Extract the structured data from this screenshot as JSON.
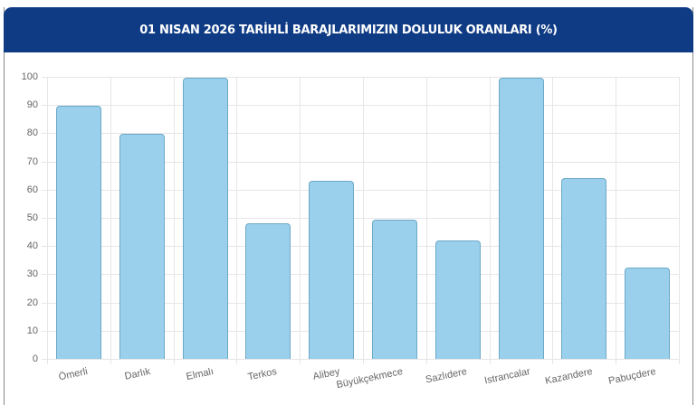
{
  "header": {
    "title": "01 NISAN 2026 TARİHLİ BARAJLARIMIZIN DOLULUK ORANLARI (%)",
    "background_color": "#0f3b85"
  },
  "colors": {
    "bar_fill": "#9bd0ec",
    "bar_border": "#6ba9c8",
    "grid": "#e6e6e6",
    "tick_text": "#666666"
  },
  "chart_data": {
    "type": "bar",
    "title": "01 NISAN 2026 TARİHLİ BARAJLARIMIZIN DOLULUK ORANLARI (%)",
    "xlabel": "",
    "ylabel": "",
    "categories": [
      "Ömerli",
      "Darlık",
      "Elmalı",
      "Terkos",
      "Alibey",
      "Büyükçekmece",
      "Sazlıdere",
      "Istrancalar",
      "Kazandere",
      "Pabuçdere"
    ],
    "values": [
      89.7,
      79.8,
      99.7,
      48.1,
      63.1,
      49.4,
      42.0,
      99.7,
      64.1,
      32.4
    ],
    "ylim": [
      0,
      100
    ],
    "yticks": [
      0,
      10,
      20,
      30,
      40,
      50,
      60,
      70,
      80,
      90,
      100
    ],
    "grid": true,
    "legend": null
  }
}
